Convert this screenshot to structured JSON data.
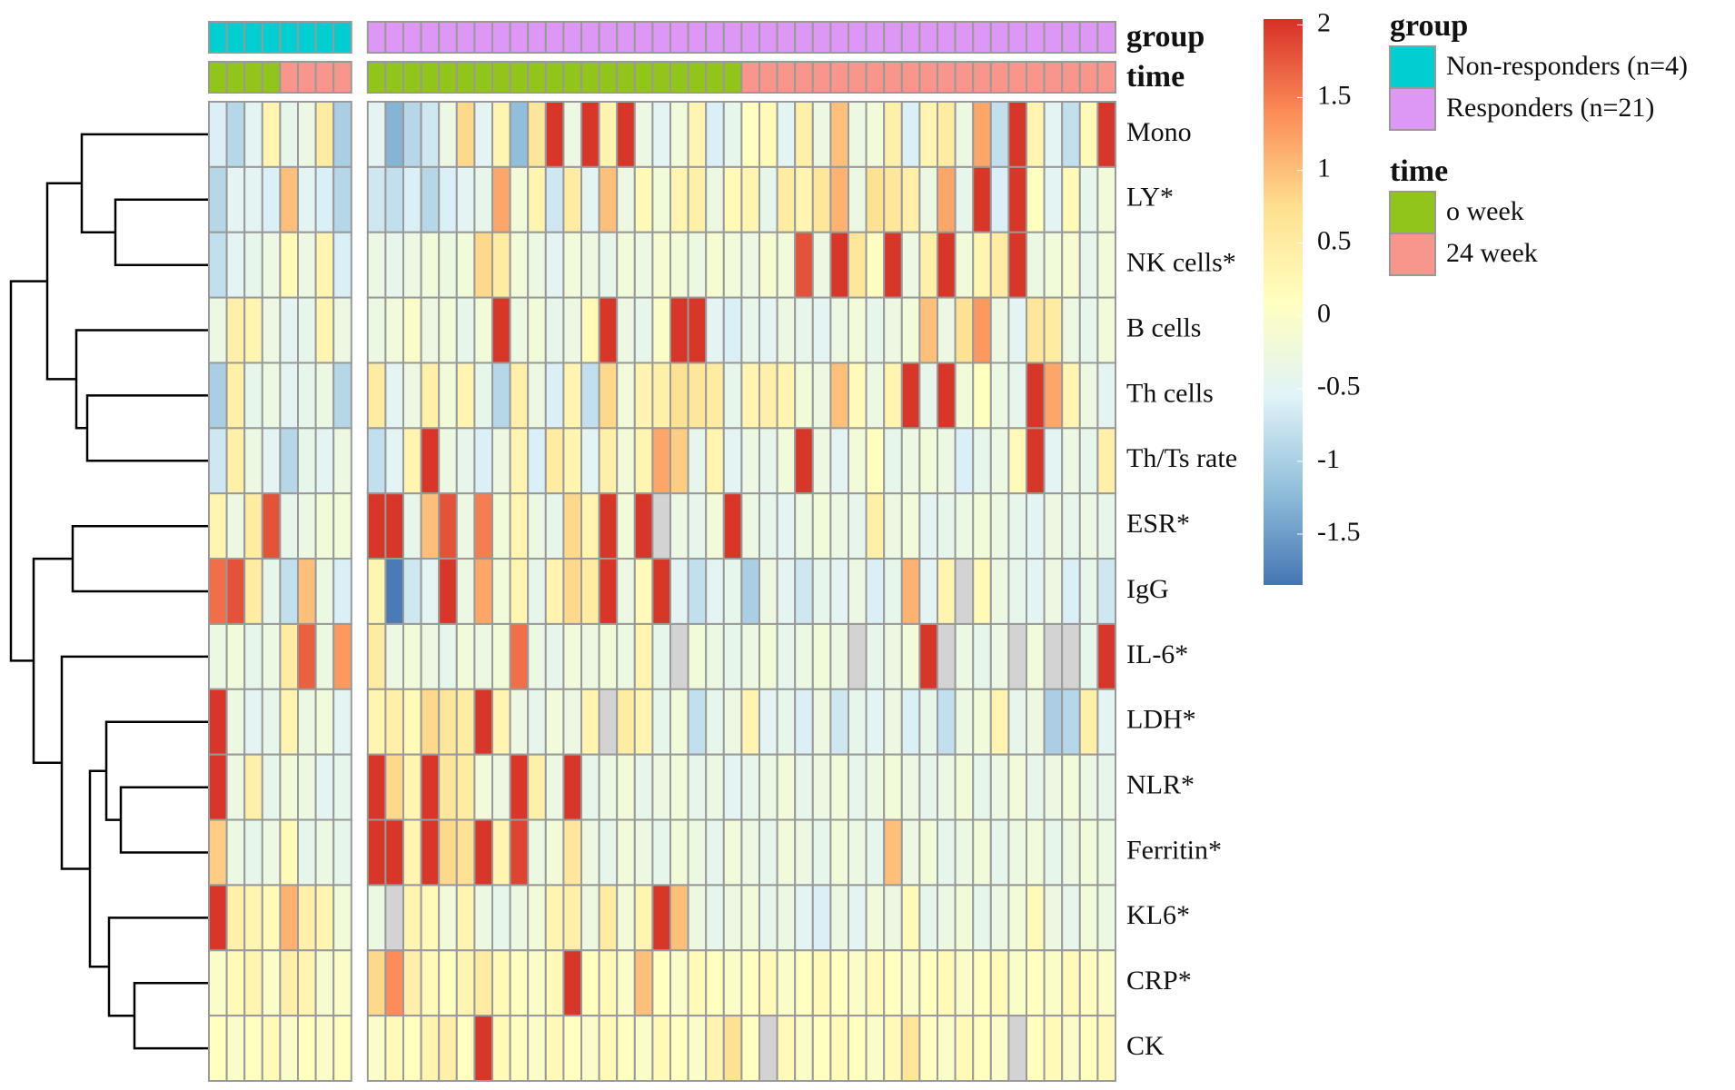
{
  "chart_data": {
    "type": "heatmap",
    "rows": [
      "Mono",
      "LY*",
      "NK cells*",
      "B cells",
      "Th cells",
      "Th/Ts rate",
      "ESR*",
      "IgG",
      "IL-6*",
      "LDH*",
      "NLR*",
      "Ferritin*",
      "KL6*",
      "CRP*",
      "CK"
    ],
    "colors": [
      "#4575B4",
      "#91BFDB",
      "#E0F3F8",
      "#FFFFBF",
      "#FEE090",
      "#FC8D59",
      "#D73027"
    ],
    "na_color": "#D3D3D3",
    "zlim": [
      -1.85,
      2.04
    ],
    "colorbar_ticks": [
      2,
      1.5,
      1,
      0.5,
      0,
      -0.5,
      -1,
      -1.5
    ],
    "values": [
      [
        -0.6,
        -0.9,
        -0.5,
        0.3,
        -0.4,
        -0.3,
        0.5,
        -1.0,
        -0.5,
        -1.3,
        -0.9,
        -0.7,
        -0.3,
        0.8,
        -0.5,
        0.3,
        -1.2,
        0.6,
        2,
        -0.3,
        2,
        0.3,
        2,
        -0.3,
        -0.5,
        -0.2,
        0.3,
        -0.6,
        -0.4,
        0.1,
        0.2,
        -0.5,
        0.4,
        -0.3,
        1.0,
        -0.3,
        -0.2,
        0.4,
        -0.6,
        0.3,
        0.5,
        -0.3,
        1.2,
        -0.8,
        2,
        0.3,
        -0.5,
        -0.8,
        0.2,
        2
      ],
      [
        -0.9,
        -0.5,
        -0.5,
        -0.6,
        1.0,
        -0.5,
        -0.6,
        -0.9,
        -0.7,
        -0.8,
        -0.6,
        -0.9,
        -0.6,
        -0.5,
        -0.4,
        1.2,
        -0.2,
        0.3,
        -0.7,
        0.5,
        -0.5,
        1.0,
        -0.3,
        0.2,
        -0.2,
        0.3,
        0.4,
        -0.3,
        0.2,
        0.3,
        -0.4,
        0.5,
        0.3,
        0.6,
        1.1,
        -0.3,
        0.7,
        0.6,
        0.4,
        -0.3,
        1.2,
        -0.4,
        2,
        -0.6,
        2,
        0.1,
        -0.5,
        0.2,
        -0.4,
        -0.2
      ],
      [
        -0.8,
        -0.5,
        -0.4,
        -0.3,
        0.2,
        -0.3,
        0.3,
        -0.6,
        -0.3,
        -0.4,
        -0.3,
        -0.2,
        -0.3,
        -0.2,
        0.8,
        0.5,
        -0.2,
        -0.3,
        -0.5,
        -0.2,
        -0.3,
        -0.4,
        -0.2,
        -0.3,
        -0.1,
        -0.2,
        -0.3,
        -0.1,
        -0.2,
        -0.3,
        -0.1,
        -0.2,
        1.8,
        -0.3,
        2,
        0.6,
        0.1,
        2,
        -0.3,
        0.4,
        2,
        -0.2,
        0.3,
        0.5,
        2,
        -0.3,
        -0.2,
        -0.1,
        -0.4,
        -0.2
      ],
      [
        -0.3,
        0.4,
        0.3,
        -0.3,
        -0.5,
        -0.4,
        0.3,
        -0.3,
        -0.3,
        -0.2,
        0,
        -0.3,
        -0.2,
        -0.4,
        -0.2,
        2,
        -0.3,
        -0.2,
        -0.4,
        -0.3,
        0.2,
        2,
        -0.3,
        -0.4,
        0,
        2,
        2,
        -0.5,
        -0.6,
        -0.4,
        -0.5,
        -0.3,
        -0.4,
        -0.5,
        -0.3,
        -0.2,
        -0.4,
        -0.3,
        -0.2,
        1.0,
        -0.3,
        0.7,
        1.3,
        -0.3,
        -0.5,
        0.6,
        0.5,
        -0.3,
        -0.4,
        -0.2
      ],
      [
        -1.0,
        0.4,
        -0.4,
        -0.3,
        -0.5,
        -0.4,
        -0.3,
        -0.9,
        0.5,
        -0.5,
        -0.3,
        0.4,
        -0.2,
        0.3,
        -0.4,
        -0.9,
        0.4,
        -0.3,
        -0.6,
        0.3,
        -0.8,
        0.8,
        -0.2,
        0.3,
        0.4,
        0.7,
        0.6,
        0.5,
        -0.4,
        0.3,
        0.4,
        0.3,
        -0.2,
        -0.3,
        1.0,
        0.2,
        -0.3,
        0.3,
        2,
        -0.4,
        2,
        -0.2,
        0.1,
        -0.3,
        -0.4,
        2,
        1.2,
        0.3,
        -0.3,
        -0.5
      ],
      [
        -0.7,
        0.4,
        -0.3,
        -0.5,
        -0.9,
        -0.4,
        -0.5,
        -0.3,
        -0.8,
        -0.5,
        0.3,
        2,
        -0.3,
        -0.4,
        -0.6,
        -0.3,
        0.3,
        -0.6,
        0.5,
        0.3,
        -0.5,
        0.4,
        -0.2,
        0.3,
        1.2,
        0.9,
        -0.4,
        0.3,
        -0.5,
        -0.3,
        -0.4,
        -0.2,
        2,
        -0.3,
        -0.5,
        -0.2,
        0.1,
        -0.4,
        -0.3,
        -0.2,
        -0.3,
        -0.6,
        -0.4,
        -0.3,
        0.2,
        2,
        -0.5,
        -0.3,
        -0.4,
        0.4
      ],
      [
        0.3,
        -0.3,
        0.5,
        1.8,
        -0.4,
        -0.3,
        -0.2,
        -0.2,
        2,
        2,
        -0.4,
        1.0,
        1.8,
        -0.3,
        1.5,
        -0.2,
        0.3,
        -0.3,
        -0.4,
        0.8,
        0.3,
        2,
        -0.2,
        2,
        null,
        -0.3,
        -0.4,
        -0.2,
        2,
        -0.3,
        -0.4,
        -0.5,
        -0.3,
        -0.2,
        -0.3,
        -0.4,
        0.4,
        -0.3,
        -0.2,
        -0.5,
        -0.4,
        -0.3,
        -0.2,
        -0.3,
        -0.4,
        -0.5,
        -0.3,
        -0.4,
        -0.3,
        -0.4
      ],
      [
        1.6,
        1.8,
        0.5,
        -0.4,
        -0.8,
        1.0,
        -0.3,
        -0.6,
        0.3,
        -1.8,
        -0.7,
        -0.5,
        2,
        -0.3,
        1.2,
        -0.2,
        0.3,
        -0.4,
        0.3,
        0.8,
        0.5,
        2,
        -0.3,
        0.2,
        2,
        -0.5,
        -0.8,
        -0.5,
        -0.4,
        -1.0,
        -0.3,
        -0.5,
        -0.7,
        -0.4,
        -0.5,
        -0.3,
        -0.6,
        -0.4,
        1.1,
        -0.5,
        0.3,
        null,
        0.2,
        -0.3,
        -0.4,
        -0.5,
        -0.3,
        -0.6,
        -0.4,
        -0.7
      ],
      [
        -0.3,
        -0.2,
        -0.4,
        -0.3,
        0.5,
        1.7,
        -0.3,
        1.3,
        0.5,
        -0.3,
        -0.2,
        -0.3,
        -0.4,
        -0.2,
        -0.3,
        -0.2,
        1.6,
        -0.3,
        -0.4,
        -0.2,
        -0.3,
        -0.2,
        -0.3,
        0.3,
        -0.4,
        null,
        -0.2,
        -0.3,
        -0.4,
        -0.3,
        -0.2,
        -0.4,
        -0.3,
        -0.2,
        -0.3,
        null,
        -0.4,
        -0.3,
        -0.2,
        2,
        null,
        -0.3,
        -0.4,
        -0.3,
        null,
        -0.2,
        null,
        null,
        -0.4,
        2
      ],
      [
        2,
        -0.3,
        -0.5,
        -0.4,
        0.3,
        -0.3,
        -0.2,
        -0.5,
        0.3,
        0.4,
        0.2,
        0.8,
        0.6,
        0.5,
        2,
        0.3,
        -0.3,
        -0.4,
        -0.2,
        -0.3,
        0.3,
        null,
        0.5,
        0.3,
        -0.4,
        -0.2,
        -0.8,
        -0.4,
        -0.3,
        0.3,
        -0.5,
        -0.4,
        -0.6,
        -0.3,
        -0.7,
        -0.4,
        -0.5,
        -0.3,
        -0.6,
        -0.4,
        -0.8,
        -0.3,
        -0.2,
        0.3,
        -0.4,
        -0.3,
        -1.0,
        -0.9,
        0.4,
        -0.5
      ],
      [
        2,
        -0.3,
        0.4,
        -0.4,
        -0.2,
        -0.3,
        -0.5,
        -0.4,
        2,
        0.8,
        0.3,
        2,
        0.6,
        0.5,
        -0.2,
        -0.3,
        2,
        0.4,
        -0.3,
        2,
        -0.4,
        -0.3,
        -0.2,
        -0.4,
        -0.3,
        -0.2,
        -0.4,
        -0.3,
        -0.5,
        -0.4,
        -0.3,
        -0.2,
        -0.4,
        -0.3,
        -0.2,
        -0.4,
        -0.3,
        -0.2,
        -0.3,
        -0.4,
        -0.3,
        -0.2,
        -0.4,
        -0.3,
        -0.2,
        -0.4,
        -0.3,
        -0.2,
        -0.3,
        -0.4
      ],
      [
        0.9,
        -0.3,
        -0.4,
        -0.3,
        0.2,
        -0.4,
        -0.3,
        -0.4,
        2,
        2,
        0.3,
        2,
        0.8,
        0.7,
        2,
        0.3,
        1.9,
        -0.3,
        -0.2,
        0.6,
        -0.3,
        -0.4,
        -0.2,
        -0.3,
        -0.4,
        -0.2,
        -0.3,
        -0.4,
        -0.2,
        -0.3,
        -0.4,
        -0.2,
        -0.3,
        -0.4,
        -0.2,
        -0.3,
        -0.4,
        1.0,
        -0.3,
        -0.2,
        -0.4,
        -0.3,
        -0.2,
        -0.4,
        -0.3,
        -0.2,
        -0.4,
        -0.3,
        -0.2,
        -0.3
      ],
      [
        2,
        0.4,
        0.3,
        0.2,
        1.1,
        0.4,
        0.3,
        -0.2,
        -0.3,
        null,
        0.3,
        0.2,
        -0.2,
        0.3,
        -0.3,
        -0.4,
        -0.3,
        -0.2,
        0.3,
        0.4,
        -0.3,
        0.5,
        -0.2,
        0.3,
        2,
        1.0,
        -0.3,
        -0.4,
        -0.3,
        -0.2,
        -0.4,
        -0.3,
        -0.5,
        -0.6,
        -0.3,
        -0.5,
        -0.2,
        -0.3,
        0.2,
        -0.4,
        -0.3,
        -0.2,
        -0.4,
        -0.3,
        -0.2,
        0.2,
        -0.3,
        -0.4,
        -0.2,
        -0.3
      ],
      [
        0,
        0.2,
        0.3,
        0,
        0.4,
        0.3,
        -0.1,
        0,
        0.8,
        1.4,
        0.4,
        0.2,
        0.1,
        0.3,
        0.5,
        0.2,
        0.1,
        0,
        0.2,
        2,
        0.1,
        0.2,
        0,
        1.0,
        0.1,
        0,
        0.2,
        0.1,
        0,
        0.1,
        0.2,
        0,
        0.1,
        0.2,
        0.1,
        0,
        0.2,
        0.1,
        0,
        0.1,
        0.2,
        0,
        0.1,
        0.2,
        0,
        0.1,
        0,
        0.2,
        0.1,
        0
      ],
      [
        0.1,
        0,
        0.1,
        0.2,
        0,
        0.1,
        0,
        0.1,
        0,
        0.2,
        0.1,
        0.3,
        0.4,
        0.1,
        2,
        0.2,
        0.1,
        0,
        0.2,
        0.1,
        0,
        0.2,
        0.1,
        0,
        0.2,
        0.1,
        0,
        0.3,
        0.7,
        0.1,
        null,
        0.2,
        0,
        0.1,
        0.2,
        0.1,
        0,
        0.2,
        0.6,
        0.1,
        0,
        0.2,
        0.1,
        0,
        null,
        0.1,
        0.2,
        0,
        0.1,
        0.2
      ]
    ],
    "annotations": [
      {
        "title": "group",
        "levels": [
          {
            "name": "Non-responders (n=4)",
            "color": "#00CED1"
          },
          {
            "name": "Responders (n=21)",
            "color": "#DD98F5"
          }
        ],
        "columns": [
          "Non-responders (n=4)",
          "Non-responders (n=4)",
          "Non-responders (n=4)",
          "Non-responders (n=4)",
          "Non-responders (n=4)",
          "Non-responders (n=4)",
          "Non-responders (n=4)",
          "Non-responders (n=4)",
          "Responders (n=21)",
          "Responders (n=21)",
          "Responders (n=21)",
          "Responders (n=21)",
          "Responders (n=21)",
          "Responders (n=21)",
          "Responders (n=21)",
          "Responders (n=21)",
          "Responders (n=21)",
          "Responders (n=21)",
          "Responders (n=21)",
          "Responders (n=21)",
          "Responders (n=21)",
          "Responders (n=21)",
          "Responders (n=21)",
          "Responders (n=21)",
          "Responders (n=21)",
          "Responders (n=21)",
          "Responders (n=21)",
          "Responders (n=21)",
          "Responders (n=21)",
          "Responders (n=21)",
          "Responders (n=21)",
          "Responders (n=21)",
          "Responders (n=21)",
          "Responders (n=21)",
          "Responders (n=21)",
          "Responders (n=21)",
          "Responders (n=21)",
          "Responders (n=21)",
          "Responders (n=21)",
          "Responders (n=21)",
          "Responders (n=21)",
          "Responders (n=21)",
          "Responders (n=21)",
          "Responders (n=21)",
          "Responders (n=21)",
          "Responders (n=21)",
          "Responders (n=21)",
          "Responders (n=21)",
          "Responders (n=21)",
          "Responders (n=21)"
        ]
      },
      {
        "title": "time",
        "levels": [
          {
            "name": "o week",
            "color": "#92C51A"
          },
          {
            "name": "24 week",
            "color": "#F8968C"
          }
        ],
        "columns": [
          "o week",
          "o week",
          "o week",
          "o week",
          "24 week",
          "24 week",
          "24 week",
          "24 week",
          "o week",
          "o week",
          "o week",
          "o week",
          "o week",
          "o week",
          "o week",
          "o week",
          "o week",
          "o week",
          "o week",
          "o week",
          "o week",
          "o week",
          "o week",
          "o week",
          "o week",
          "o week",
          "o week",
          "o week",
          "o week",
          "24 week",
          "24 week",
          "24 week",
          "24 week",
          "24 week",
          "24 week",
          "24 week",
          "24 week",
          "24 week",
          "24 week",
          "24 week",
          "24 week",
          "24 week",
          "24 week",
          "24 week",
          "24 week",
          "24 week",
          "24 week",
          "24 week",
          "24 week",
          "24 week"
        ]
      }
    ]
  }
}
